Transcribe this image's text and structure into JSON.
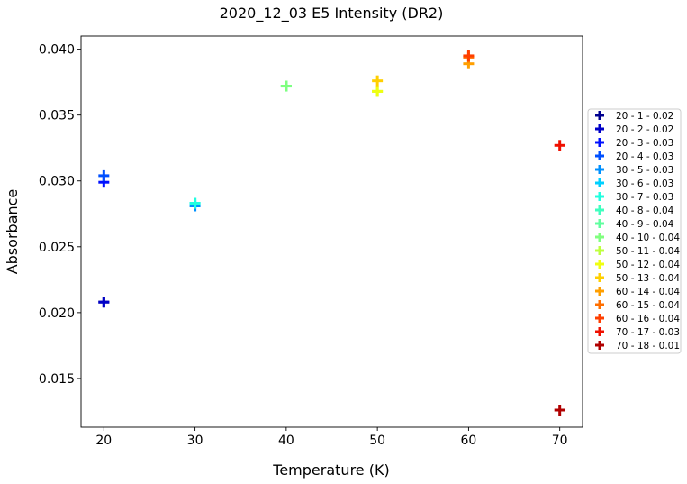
{
  "chart_data": {
    "type": "scatter",
    "title": "2020_12_03 E5 Intensity (DR2)",
    "xlabel": "Temperature (K)",
    "ylabel": "Absorbance",
    "xlim": [
      17.5,
      72.5
    ],
    "ylim": [
      0.0113,
      0.041
    ],
    "xticks": [
      20,
      30,
      40,
      50,
      60,
      70
    ],
    "yticks": [
      0.015,
      0.02,
      0.025,
      0.03,
      0.035,
      0.04
    ],
    "ytick_labels": [
      "0.015",
      "0.020",
      "0.025",
      "0.030",
      "0.035",
      "0.040"
    ],
    "grid": false,
    "legend_position": "outside-right",
    "marker": "plus",
    "series": [
      {
        "name": "20 - 1 - 0.02",
        "color": "#00008f",
        "x": 20,
        "y": 0.0208
      },
      {
        "name": "20 - 2 - 0.02",
        "color": "#0000c8",
        "x": 20,
        "y": 0.0208
      },
      {
        "name": "20 - 3 - 0.03",
        "color": "#0010ff",
        "x": 20,
        "y": 0.0299
      },
      {
        "name": "20 - 4 - 0.03",
        "color": "#0050ff",
        "x": 20,
        "y": 0.0304
      },
      {
        "name": "30 - 5 - 0.03",
        "color": "#0090ff",
        "x": 30,
        "y": 0.0281
      },
      {
        "name": "30 - 6 - 0.03",
        "color": "#00d0ff",
        "x": 30,
        "y": 0.0283
      },
      {
        "name": "30 - 7 - 0.03",
        "color": "#20ffdf",
        "x": 30,
        "y": 0.0283
      },
      {
        "name": "40 - 8 - 0.04",
        "color": "#40ffbf",
        "x": 40,
        "y": 0.0372
      },
      {
        "name": "40 - 9 - 0.04",
        "color": "#60ff9f",
        "x": 40,
        "y": 0.0372
      },
      {
        "name": "40 - 10 - 0.04",
        "color": "#80ff7f",
        "x": 40,
        "y": 0.0372
      },
      {
        "name": "50 - 11 - 0.04",
        "color": "#bfff40",
        "x": 50,
        "y": 0.0368
      },
      {
        "name": "50 - 12 - 0.04",
        "color": "#efff10",
        "x": 50,
        "y": 0.0368
      },
      {
        "name": "50 - 13 - 0.04",
        "color": "#ffcf00",
        "x": 50,
        "y": 0.0376
      },
      {
        "name": "60 - 14 - 0.04",
        "color": "#ff9f00",
        "x": 60,
        "y": 0.0389
      },
      {
        "name": "60 - 15 - 0.04",
        "color": "#ff6f00",
        "x": 60,
        "y": 0.0394
      },
      {
        "name": "60 - 16 - 0.04",
        "color": "#ff3f00",
        "x": 60,
        "y": 0.0395
      },
      {
        "name": "70 - 17 - 0.03",
        "color": "#ef1000",
        "x": 70,
        "y": 0.0327
      },
      {
        "name": "70 - 18 - 0.01",
        "color": "#b00000",
        "x": 70,
        "y": 0.0126
      }
    ]
  }
}
